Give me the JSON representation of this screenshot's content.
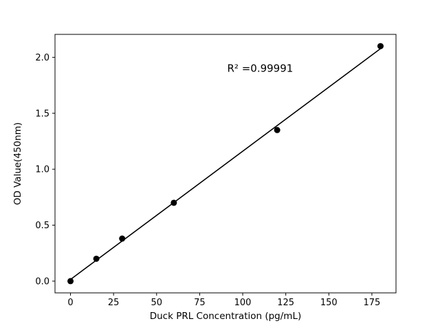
{
  "figure": {
    "background": "#ffffff"
  },
  "chart_data": {
    "type": "scatter",
    "title": "",
    "xlabel": "Duck PRL Concentration (pg/mL)",
    "ylabel": "OD Value(450nm)",
    "x": [
      0,
      15,
      30,
      60,
      120,
      180
    ],
    "y": [
      0.0,
      0.2,
      0.38,
      0.7,
      1.35,
      2.1
    ],
    "fit_line": true,
    "annotation": {
      "text": "R² =0.99991",
      "x": 91,
      "y": 1.87
    },
    "xticks": [
      0,
      25,
      50,
      75,
      100,
      125,
      150,
      175
    ],
    "xtick_labels": [
      "0",
      "25",
      "50",
      "75",
      "100",
      "125",
      "150",
      "175"
    ],
    "yticks": [
      0.0,
      0.5,
      1.0,
      1.5,
      2.0
    ],
    "ytick_labels": [
      "0.0",
      "0.5",
      "1.0",
      "1.5",
      "2.0"
    ],
    "xlim": [
      -9,
      189
    ],
    "ylim": [
      -0.105,
      2.205
    ],
    "grid": false,
    "legend": "none",
    "marker_color": "#000000",
    "line_color": "#000000",
    "axis_color": "#000000"
  }
}
